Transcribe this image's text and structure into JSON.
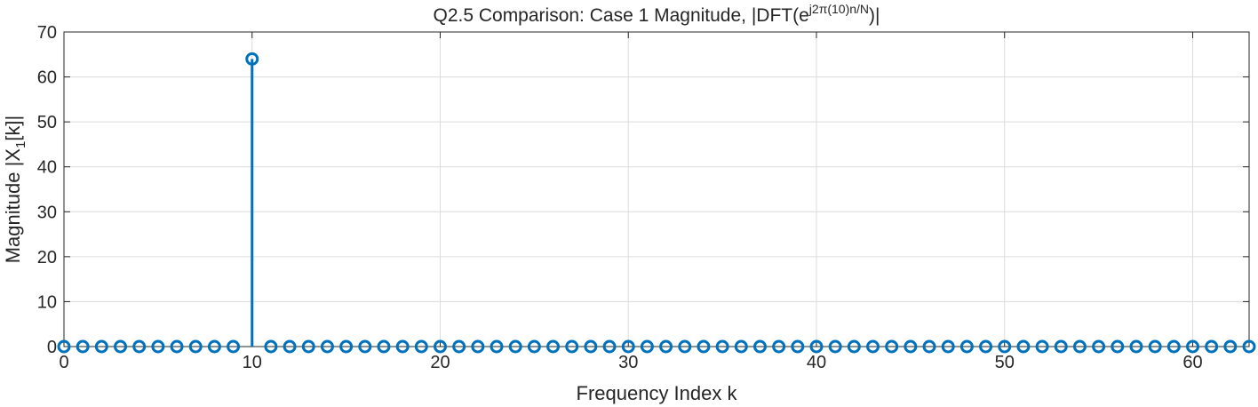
{
  "chart_data": {
    "type": "stem",
    "title": {
      "prefix": "Q2.5  Comparison:  Case  1  Magnitude,  |DFT(e",
      "superscript": "j2π(10)n/N",
      "suffix": ")|"
    },
    "xlabel": "Frequency Index k",
    "ylabel": {
      "main": "Magnitude  |X",
      "subscript": "1",
      "tail": "[k]|"
    },
    "xlim": [
      0,
      63
    ],
    "ylim": [
      0,
      70
    ],
    "xticks": [
      0,
      10,
      20,
      30,
      40,
      50,
      60
    ],
    "yticks": [
      0,
      10,
      20,
      30,
      40,
      50,
      60,
      70
    ],
    "grid": true,
    "series": [
      {
        "color": "#0072BD",
        "x": [
          0,
          1,
          2,
          3,
          4,
          5,
          6,
          7,
          8,
          9,
          10,
          11,
          12,
          13,
          14,
          15,
          16,
          17,
          18,
          19,
          20,
          21,
          22,
          23,
          24,
          25,
          26,
          27,
          28,
          29,
          30,
          31,
          32,
          33,
          34,
          35,
          36,
          37,
          38,
          39,
          40,
          41,
          42,
          43,
          44,
          45,
          46,
          47,
          48,
          49,
          50,
          51,
          52,
          53,
          54,
          55,
          56,
          57,
          58,
          59,
          60,
          61,
          62,
          63
        ],
        "values": [
          0,
          0,
          0,
          0,
          0,
          0,
          0,
          0,
          0,
          0,
          64,
          0,
          0,
          0,
          0,
          0,
          0,
          0,
          0,
          0,
          0,
          0,
          0,
          0,
          0,
          0,
          0,
          0,
          0,
          0,
          0,
          0,
          0,
          0,
          0,
          0,
          0,
          0,
          0,
          0,
          0,
          0,
          0,
          0,
          0,
          0,
          0,
          0,
          0,
          0,
          0,
          0,
          0,
          0,
          0,
          0,
          0,
          0,
          0,
          0,
          0,
          0,
          0,
          0
        ]
      }
    ]
  }
}
